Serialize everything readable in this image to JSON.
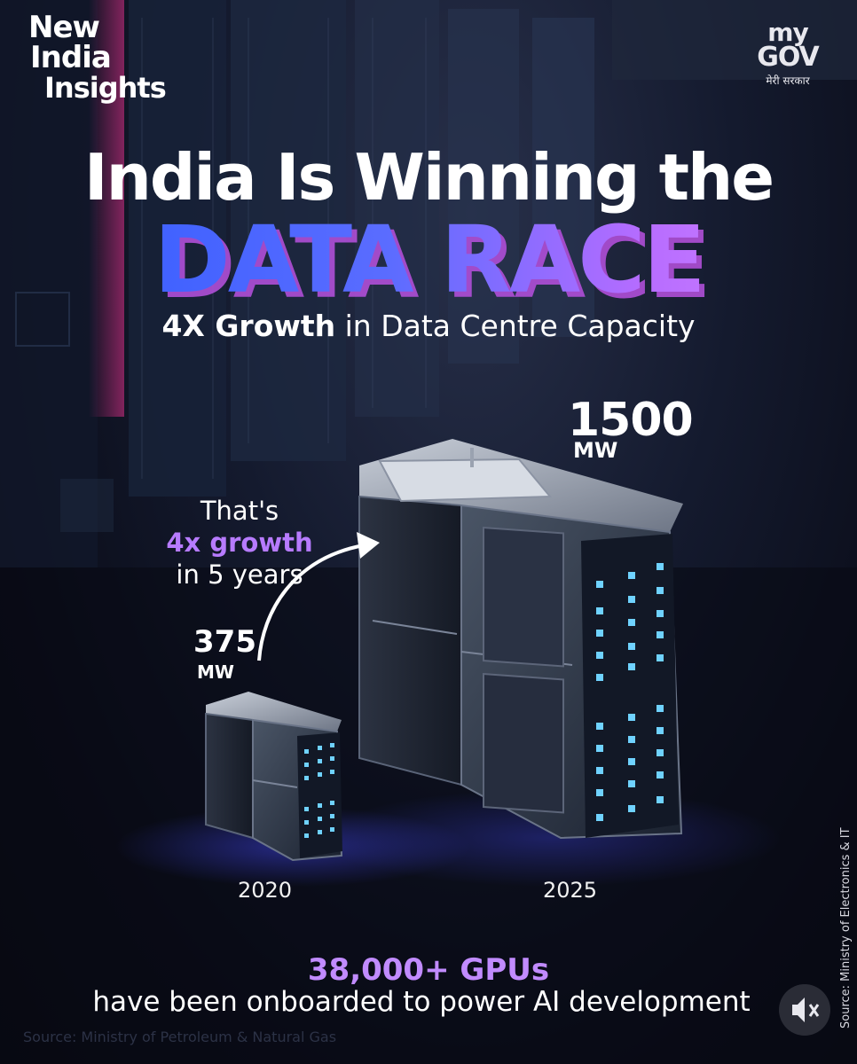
{
  "brand": {
    "line1": "New",
    "line2": "India",
    "line3": "Insights"
  },
  "logo": {
    "line1": "my",
    "line2": "GOV",
    "tagline": "मेरी सरकार"
  },
  "headline": {
    "line1": "India Is Winning the",
    "line2": "DATA RACE",
    "subtitle_bold": "4X Growth",
    "subtitle_rest": " in Data Centre Capacity"
  },
  "capacity": {
    "value_2025": "1500",
    "unit_2025": "MW",
    "value_2020": "375",
    "unit_2020": "MW",
    "year_2020": "2020",
    "year_2025": "2025"
  },
  "growth_note": {
    "line1": "That's",
    "line2": "4x growth",
    "line3": "in 5 years"
  },
  "gpus": {
    "headline": "38,000+ GPUs",
    "text": "have been onboarded to power AI development"
  },
  "sources": {
    "bottom": "Source: Ministry of Petroleum & Natural Gas",
    "side": "Source: Ministry of Electronics & IT"
  },
  "icons": {
    "mute": "muted-speaker-icon"
  },
  "colors": {
    "accent_purple": "#b77bff",
    "title_blue": "#2f5bff",
    "title_purple": "#d787ff",
    "server_light": "#6fd2ff"
  }
}
